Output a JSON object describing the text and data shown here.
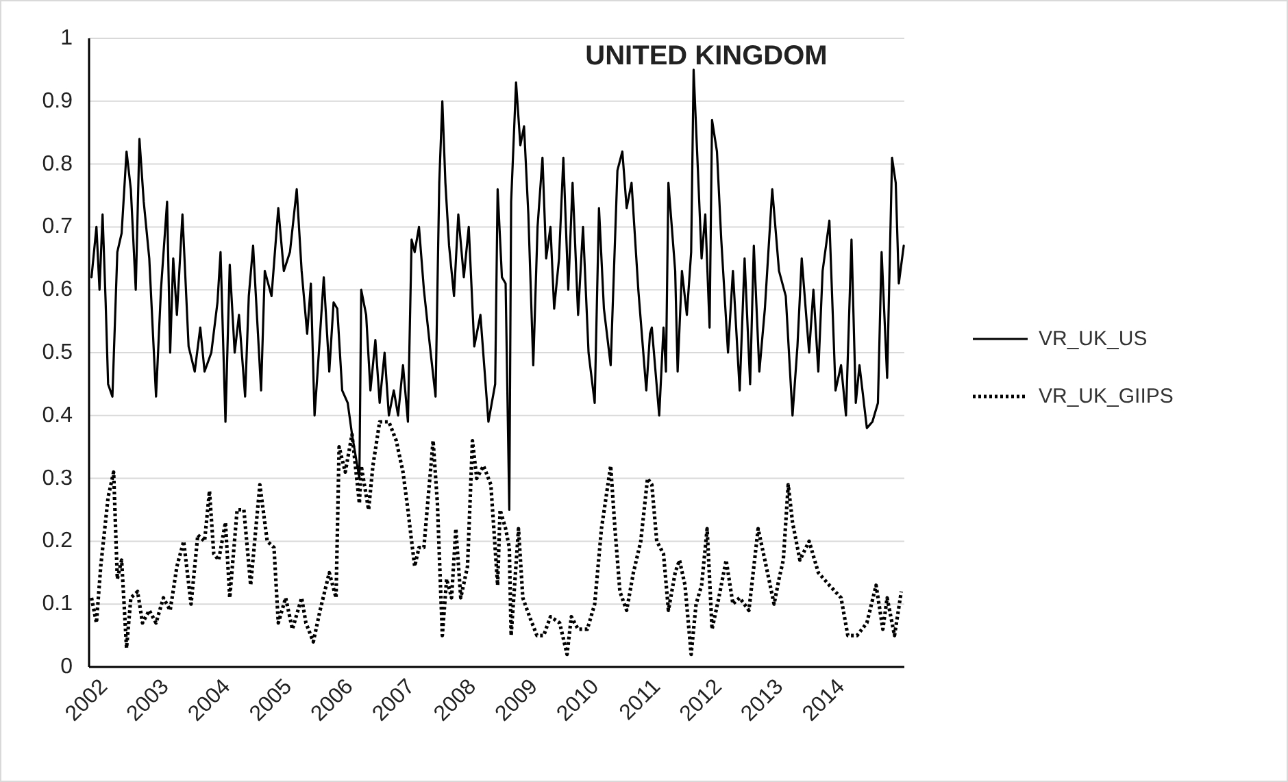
{
  "chart_data": {
    "type": "line",
    "title": "UNITED KINGDOM",
    "xlim": [
      2001.89,
      2015.16
    ],
    "xticks": [
      2002,
      2003,
      2004,
      2005,
      2006,
      2007,
      2008,
      2009,
      2010,
      2011,
      2012,
      2013,
      2014
    ],
    "ylim": [
      0,
      1
    ],
    "yticks": [
      0,
      0.1,
      0.2,
      0.3,
      0.4,
      0.5,
      0.6,
      0.7,
      0.8,
      0.9,
      1
    ],
    "grid": "y",
    "legend": "right",
    "marker": "none",
    "series": [
      {
        "name": "VR_UK_US",
        "color": "#000000",
        "line_style": "solid",
        "x": [
          2001.93,
          2002.01,
          2002.06,
          2002.11,
          2002.16,
          2002.2,
          2002.27,
          2002.35,
          2002.42,
          2002.5,
          2002.57,
          2002.65,
          2002.71,
          2002.78,
          2002.87,
          2002.98,
          2003.06,
          2003.16,
          2003.21,
          2003.26,
          2003.32,
          2003.41,
          2003.51,
          2003.61,
          2003.7,
          2003.77,
          2003.88,
          2003.98,
          2004.03,
          2004.11,
          2004.18,
          2004.26,
          2004.33,
          2004.43,
          2004.49,
          2004.56,
          2004.69,
          2004.75,
          2004.86,
          2004.97,
          2005.06,
          2005.16,
          2005.27,
          2005.35,
          2005.44,
          2005.5,
          2005.56,
          2005.61,
          2005.71,
          2005.8,
          2005.87,
          2005.93,
          2006.01,
          2006.1,
          2006.17,
          2006.29,
          2006.32,
          2006.4,
          2006.47,
          2006.55,
          2006.62,
          2006.7,
          2006.77,
          2006.85,
          2006.92,
          2007,
          2007.08,
          2007.14,
          2007.19,
          2007.26,
          2007.34,
          2007.45,
          2007.53,
          2007.59,
          2007.64,
          2007.69,
          2007.75,
          2007.83,
          2007.9,
          2007.99,
          2008.07,
          2008.16,
          2008.26,
          2008.39,
          2008.5,
          2008.54,
          2008.61,
          2008.67,
          2008.73,
          2008.76,
          2008.84,
          2008.91,
          2008.97,
          2009.04,
          2009.12,
          2009.19,
          2009.27,
          2009.33,
          2009.4,
          2009.46,
          2009.54,
          2009.61,
          2009.69,
          2009.76,
          2009.85,
          2009.93,
          2010.02,
          2010.12,
          2010.19,
          2010.27,
          2010.38,
          2010.49,
          2010.57,
          2010.64,
          2010.72,
          2010.83,
          2010.96,
          2011.02,
          2011.05,
          2011.17,
          2011.24,
          2011.28,
          2011.32,
          2011.43,
          2011.47,
          2011.54,
          2011.62,
          2011.69,
          2011.73,
          2011.8,
          2011.86,
          2011.92,
          2011.99,
          2012.03,
          2012.11,
          2012.18,
          2012.29,
          2012.37,
          2012.48,
          2012.56,
          2012.65,
          2012.71,
          2012.8,
          2012.89,
          2013.01,
          2013.12,
          2013.23,
          2013.34,
          2013.42,
          2013.49,
          2013.61,
          2013.68,
          2013.76,
          2013.83,
          2013.94,
          2014.04,
          2014.13,
          2014.21,
          2014.3,
          2014.37,
          2014.43,
          2014.55,
          2014.64,
          2014.73,
          2014.79,
          2014.88,
          2014.96,
          2015.02,
          2015.07,
          2015.15
        ],
        "values": [
          0.62,
          0.7,
          0.6,
          0.72,
          0.58,
          0.45,
          0.43,
          0.66,
          0.69,
          0.82,
          0.76,
          0.6,
          0.84,
          0.74,
          0.65,
          0.43,
          0.6,
          0.74,
          0.5,
          0.65,
          0.56,
          0.72,
          0.51,
          0.47,
          0.54,
          0.47,
          0.5,
          0.58,
          0.66,
          0.39,
          0.64,
          0.5,
          0.56,
          0.43,
          0.59,
          0.67,
          0.44,
          0.63,
          0.59,
          0.73,
          0.63,
          0.66,
          0.76,
          0.63,
          0.53,
          0.61,
          0.4,
          0.47,
          0.62,
          0.47,
          0.58,
          0.57,
          0.44,
          0.42,
          0.37,
          0.3,
          0.6,
          0.56,
          0.44,
          0.52,
          0.42,
          0.5,
          0.4,
          0.44,
          0.4,
          0.48,
          0.39,
          0.68,
          0.66,
          0.7,
          0.6,
          0.5,
          0.43,
          0.77,
          0.9,
          0.77,
          0.67,
          0.59,
          0.72,
          0.62,
          0.7,
          0.51,
          0.56,
          0.39,
          0.45,
          0.76,
          0.62,
          0.61,
          0.25,
          0.74,
          0.93,
          0.83,
          0.86,
          0.72,
          0.48,
          0.7,
          0.81,
          0.65,
          0.7,
          0.57,
          0.65,
          0.81,
          0.6,
          0.77,
          0.56,
          0.7,
          0.5,
          0.42,
          0.73,
          0.57,
          0.48,
          0.79,
          0.82,
          0.73,
          0.77,
          0.6,
          0.44,
          0.53,
          0.54,
          0.4,
          0.54,
          0.47,
          0.77,
          0.63,
          0.47,
          0.63,
          0.56,
          0.66,
          0.95,
          0.79,
          0.65,
          0.72,
          0.54,
          0.87,
          0.82,
          0.68,
          0.5,
          0.63,
          0.44,
          0.65,
          0.45,
          0.67,
          0.47,
          0.57,
          0.76,
          0.63,
          0.59,
          0.4,
          0.51,
          0.65,
          0.5,
          0.6,
          0.47,
          0.63,
          0.71,
          0.44,
          0.48,
          0.4,
          0.68,
          0.42,
          0.48,
          0.38,
          0.39,
          0.42,
          0.66,
          0.46,
          0.81,
          0.77,
          0.61,
          0.67
        ]
      },
      {
        "name": "VR_UK_GIIPS",
        "color": "#000000",
        "line_style": "dotted",
        "x": [
          2001.93,
          2002.01,
          2002.08,
          2002.2,
          2002.29,
          2002.35,
          2002.42,
          2002.5,
          2002.57,
          2002.68,
          2002.76,
          2002.87,
          2002.98,
          2003.1,
          2003.21,
          2003.32,
          2003.43,
          2003.55,
          2003.66,
          2003.77,
          2003.85,
          2003.92,
          2004,
          2004.11,
          2004.18,
          2004.3,
          2004.41,
          2004.52,
          2004.67,
          2004.79,
          2004.9,
          2004.97,
          2005.09,
          2005.2,
          2005.35,
          2005.42,
          2005.54,
          2005.65,
          2005.8,
          2005.91,
          2005.96,
          2006.06,
          2006.17,
          2006.29,
          2006.32,
          2006.44,
          2006.51,
          2006.62,
          2006.77,
          2006.89,
          2007,
          2007.08,
          2007.14,
          2007.19,
          2007.26,
          2007.34,
          2007.41,
          2007.49,
          2007.56,
          2007.64,
          2007.71,
          2007.79,
          2007.86,
          2007.94,
          2008.05,
          2008.13,
          2008.2,
          2008.31,
          2008.43,
          2008.54,
          2008.58,
          2008.67,
          2008.73,
          2008.76,
          2008.88,
          2008.95,
          2009.06,
          2009.18,
          2009.29,
          2009.4,
          2009.55,
          2009.67,
          2009.74,
          2009.85,
          2010,
          2010.12,
          2010.23,
          2010.38,
          2010.45,
          2010.53,
          2010.64,
          2010.75,
          2010.87,
          2010.98,
          2011.05,
          2011.13,
          2011.24,
          2011.32,
          2011.43,
          2011.5,
          2011.59,
          2011.69,
          2011.77,
          2011.86,
          2011.95,
          2012.03,
          2012.14,
          2012.26,
          2012.37,
          2012.48,
          2012.63,
          2012.78,
          2012.89,
          2013.04,
          2013.12,
          2013.19,
          2013.27,
          2013.34,
          2013.46,
          2013.61,
          2013.76,
          2013.94,
          2014.13,
          2014.24,
          2014.39,
          2014.55,
          2014.7,
          2014.81,
          2014.88,
          2015,
          2015.11
        ],
        "values": [
          0.11,
          0.07,
          0.16,
          0.27,
          0.31,
          0.14,
          0.17,
          0.03,
          0.11,
          0.12,
          0.07,
          0.09,
          0.07,
          0.11,
          0.09,
          0.16,
          0.2,
          0.1,
          0.21,
          0.2,
          0.28,
          0.18,
          0.17,
          0.23,
          0.11,
          0.25,
          0.25,
          0.13,
          0.29,
          0.2,
          0.19,
          0.07,
          0.11,
          0.06,
          0.11,
          0.07,
          0.04,
          0.09,
          0.15,
          0.11,
          0.35,
          0.31,
          0.37,
          0.26,
          0.32,
          0.25,
          0.32,
          0.39,
          0.39,
          0.36,
          0.31,
          0.25,
          0.2,
          0.16,
          0.19,
          0.19,
          0.27,
          0.36,
          0.26,
          0.05,
          0.14,
          0.11,
          0.22,
          0.11,
          0.16,
          0.36,
          0.3,
          0.32,
          0.29,
          0.13,
          0.25,
          0.22,
          0.19,
          0.05,
          0.22,
          0.11,
          0.08,
          0.05,
          0.05,
          0.08,
          0.07,
          0.02,
          0.08,
          0.06,
          0.06,
          0.1,
          0.22,
          0.32,
          0.22,
          0.12,
          0.09,
          0.15,
          0.2,
          0.3,
          0.29,
          0.2,
          0.18,
          0.09,
          0.15,
          0.17,
          0.13,
          0.02,
          0.1,
          0.13,
          0.22,
          0.06,
          0.11,
          0.17,
          0.1,
          0.11,
          0.09,
          0.22,
          0.17,
          0.1,
          0.14,
          0.17,
          0.29,
          0.23,
          0.17,
          0.2,
          0.15,
          0.13,
          0.11,
          0.05,
          0.05,
          0.07,
          0.13,
          0.06,
          0.11,
          0.05,
          0.12
        ]
      }
    ]
  }
}
